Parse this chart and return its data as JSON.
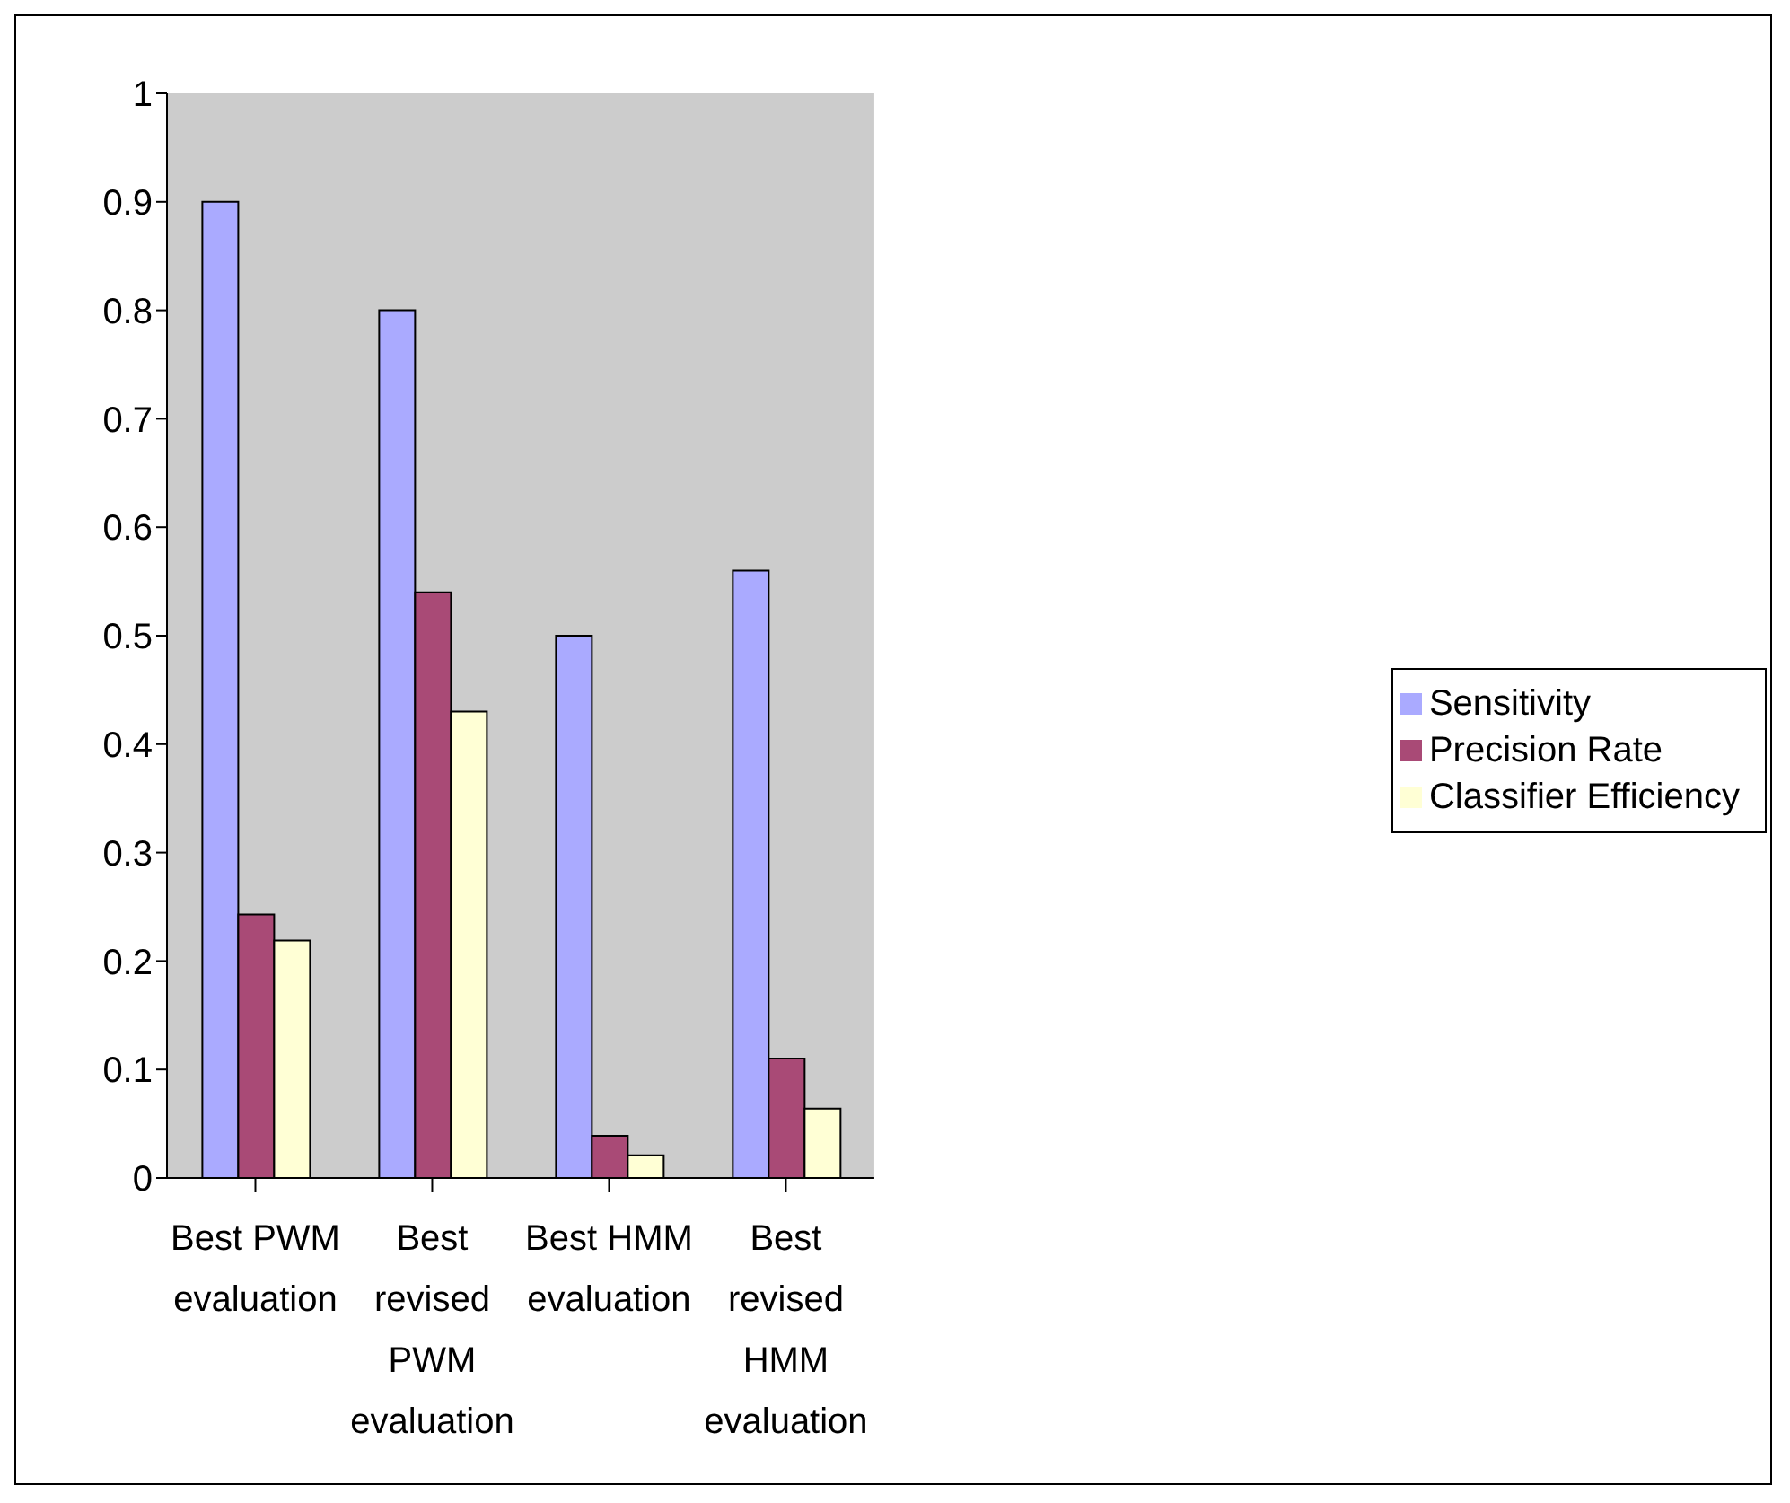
{
  "chart_data": {
    "type": "bar",
    "categories": [
      "Best PWM evaluation",
      "Best revised PWM evaluation",
      "Best HMM evaluation",
      "Best revised HMM evaluation"
    ],
    "series": [
      {
        "name": "Sensitivity",
        "color": "#aaaaff",
        "values": [
          0.9,
          0.8,
          0.5,
          0.56
        ]
      },
      {
        "name": "Precision Rate",
        "color": "#a94a76",
        "values": [
          0.243,
          0.54,
          0.039,
          0.11
        ]
      },
      {
        "name": "Classifier Efficiency",
        "color": "#ffffd5",
        "values": [
          0.219,
          0.43,
          0.021,
          0.064
        ]
      }
    ],
    "ylim": [
      0,
      1
    ],
    "yticks": [
      0,
      0.1,
      0.2,
      0.3,
      0.4,
      0.5,
      0.6,
      0.7,
      0.8,
      0.9,
      1
    ],
    "grid": false,
    "legend": "right"
  }
}
